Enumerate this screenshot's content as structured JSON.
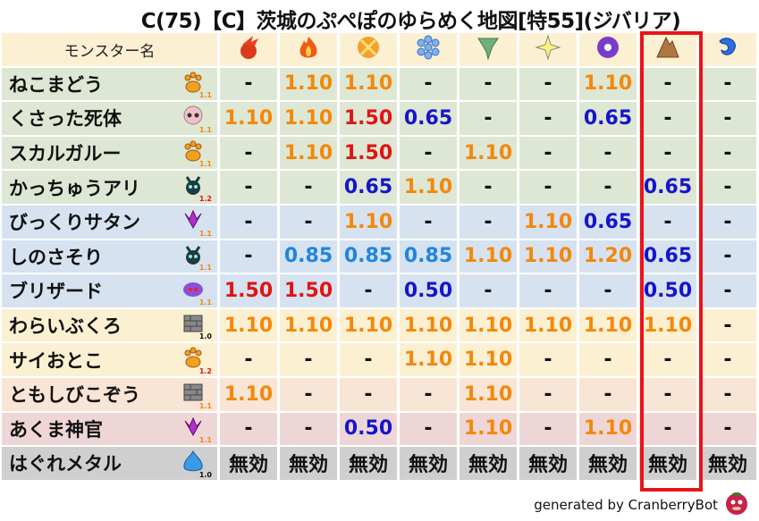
{
  "title": "C(75)【C】茨城のぷぺぽのゆらめく地図[特55](ジバリア)",
  "header": {
    "name_label": "モンスター名",
    "elements": [
      "meteor-icon",
      "fire-icon",
      "explosion-icon",
      "ice-icon",
      "tornado-icon",
      "flash-icon",
      "dark-icon",
      "earth-icon",
      "wave-icon"
    ],
    "highlighted_element": "earth-icon"
  },
  "colors": {
    "orange": "#f5870a",
    "red": "#e01414",
    "blue": "#1515cc",
    "lightblue": "#1f85e0",
    "black": "#111111",
    "highlight": "#e8141a"
  },
  "rows": [
    {
      "name": "ねこまどう",
      "icon": "beast",
      "level": "1.1",
      "bg": "#dde7d4",
      "values": [
        "-",
        "1.10",
        "1.10",
        "-",
        "-",
        "-",
        "1.10",
        "-",
        "-"
      ]
    },
    {
      "name": "くさった死体",
      "icon": "zombie",
      "level": "1.1",
      "bg": "#dde7d4",
      "values": [
        "1.10",
        "1.10",
        "1.50",
        "0.65",
        "-",
        "-",
        "0.65",
        "-",
        "-"
      ]
    },
    {
      "name": "スカルガルー",
      "icon": "beast",
      "level": "1.1",
      "bg": "#dde7d4",
      "values": [
        "-",
        "1.10",
        "1.50",
        "-",
        "1.10",
        "-",
        "-",
        "-",
        "-"
      ]
    },
    {
      "name": "かっちゅうアリ",
      "icon": "insect",
      "level": "1.2",
      "bg": "#dde7d4",
      "values": [
        "-",
        "-",
        "0.65",
        "1.10",
        "-",
        "-",
        "-",
        "0.65",
        "-"
      ]
    },
    {
      "name": "びっくりサタン",
      "icon": "demon",
      "level": "1.1",
      "bg": "#d6e2ef",
      "values": [
        "-",
        "-",
        "1.10",
        "-",
        "-",
        "1.10",
        "0.65",
        "-",
        "-"
      ]
    },
    {
      "name": "しのさそり",
      "icon": "insect",
      "level": "1.1",
      "bg": "#d6e2ef",
      "values": [
        "-",
        "0.85",
        "0.85",
        "0.85",
        "1.10",
        "1.10",
        "1.20",
        "0.65",
        "-"
      ]
    },
    {
      "name": "ブリザード",
      "icon": "element",
      "level": "1.1",
      "bg": "#d6e2ef",
      "values": [
        "1.50",
        "1.50",
        "-",
        "0.50",
        "-",
        "-",
        "-",
        "0.50",
        "-"
      ]
    },
    {
      "name": "わらいぶくろ",
      "icon": "material",
      "level": "1.0",
      "bg": "#fcf0d3",
      "values": [
        "1.10",
        "1.10",
        "1.10",
        "1.10",
        "1.10",
        "1.10",
        "1.10",
        "1.10",
        "-"
      ]
    },
    {
      "name": "サイおとこ",
      "icon": "beast",
      "level": "1.2",
      "bg": "#fcf0d3",
      "values": [
        "-",
        "-",
        "-",
        "1.10",
        "1.10",
        "-",
        "-",
        "-",
        "-"
      ]
    },
    {
      "name": "ともしびこぞう",
      "icon": "material",
      "level": "1.1",
      "bg": "#f8e5d5",
      "values": [
        "1.10",
        "-",
        "-",
        "-",
        "1.10",
        "-",
        "-",
        "-",
        "-"
      ]
    },
    {
      "name": "あくま神官",
      "icon": "demon",
      "level": "1.1",
      "bg": "#efd6d6",
      "values": [
        "-",
        "-",
        "0.50",
        "-",
        "1.10",
        "-",
        "1.10",
        "-",
        "-"
      ]
    },
    {
      "name": "はぐれメタル",
      "icon": "slime",
      "level": "1.0",
      "bg": "#cfcfcf",
      "values": [
        "無効",
        "無効",
        "無効",
        "無効",
        "無効",
        "無効",
        "無効",
        "無効",
        "無効"
      ]
    }
  ],
  "footer": "generated by CranberryBot"
}
